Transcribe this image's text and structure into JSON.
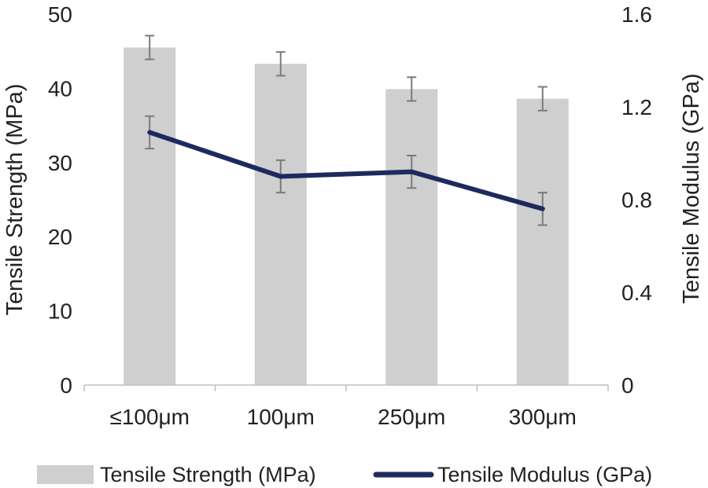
{
  "chart_data": {
    "type": "bar",
    "categories": [
      "≤100μm",
      "100μm",
      "250μm",
      "300μm"
    ],
    "series": [
      {
        "name": "Tensile Strength (MPa)",
        "type": "bar",
        "axis": "left",
        "values": [
          45.5,
          43.3,
          39.9,
          38.6
        ],
        "error": [
          1.6,
          1.6,
          1.6,
          1.6
        ],
        "color": "#d0cfd0"
      },
      {
        "name": "Tensile Modulus (GPa)",
        "type": "line",
        "axis": "right",
        "values": [
          1.09,
          0.9,
          0.92,
          0.76
        ],
        "error": [
          0.07,
          0.07,
          0.07,
          0.07
        ],
        "color": "#1e2a5e"
      }
    ],
    "ylabel": "Tensile Strength (MPa)",
    "y2label": "Tensile Modulus (GPa)",
    "ylim": [
      0,
      50
    ],
    "y2lim": [
      0,
      1.6
    ],
    "yticks": [
      "0",
      "10",
      "20",
      "30",
      "40",
      "50"
    ],
    "y2ticks": [
      "0",
      "0.4",
      "0.8",
      "1.2",
      "1.6"
    ],
    "grid": false,
    "legend_position": "bottom",
    "error_bar_color": "#7a7a7a"
  }
}
